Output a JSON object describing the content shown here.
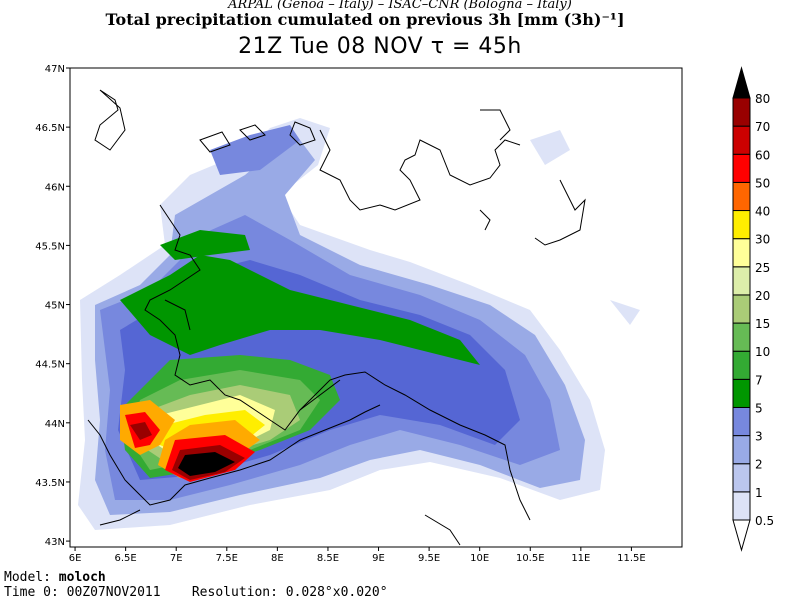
{
  "header": {
    "line1": "ARPAL (Genoa – Italy)  –  ISAC–CNR (Bologna – Italy)",
    "line2": "Total precipitation cumulated on previous 3h [mm (3h)⁻¹]",
    "line3": "21Z Tue 08 NOV  τ = 45h"
  },
  "map": {
    "lon_ticks": [
      "6E",
      "6.5E",
      "7E",
      "7.5E",
      "8E",
      "8.5E",
      "9E",
      "9.5E",
      "10E",
      "10.5E",
      "11E",
      "11.5E"
    ],
    "lat_ticks": [
      "47N",
      "46.5N",
      "46N",
      "45.5N",
      "45N",
      "44.5N",
      "44N",
      "43.5N",
      "43N"
    ],
    "lon_range": [
      5.95,
      12.0
    ],
    "lat_range": [
      42.95,
      47.0
    ]
  },
  "colorbar": {
    "labels": [
      "0.5",
      "1",
      "2",
      "3",
      "5",
      "7",
      "10",
      "15",
      "20",
      "25",
      "30",
      "40",
      "50",
      "60",
      "70",
      "80"
    ],
    "colors": [
      "#ffffff",
      "#dde3f7",
      "#bbc6ee",
      "#99aae6",
      "#7788de",
      "#5566d4",
      "#009600",
      "#33aa33",
      "#66bb55",
      "#aacc77",
      "#ddeeaa",
      "#ffff99",
      "#ffee00",
      "#ffaa00",
      "#ff6600",
      "#ff0000",
      "#cc0000",
      "#990000",
      "#000000"
    ]
  },
  "footer": {
    "model_label": "Model:",
    "model_value": "moloch",
    "time_label": "Time 0:",
    "time_value": "00Z07NOV2011",
    "resolution_label": "Resolution:",
    "resolution_value": "0.028°x0.020°"
  }
}
